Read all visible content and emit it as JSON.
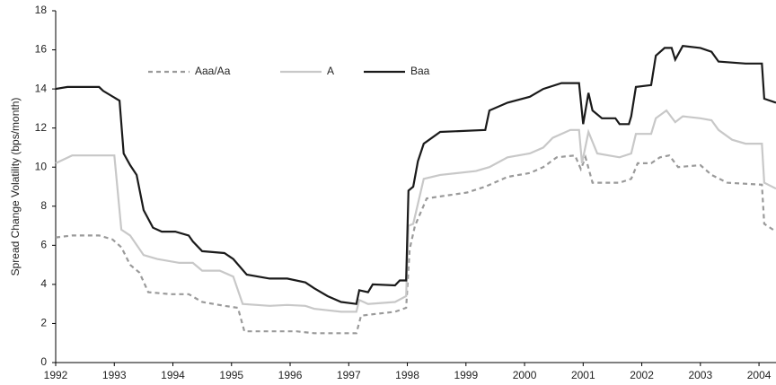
{
  "chart_data": {
    "type": "line",
    "ylabel": "Spread Change Volatility (bps/month)",
    "xlim": [
      1992,
      2004.29
    ],
    "xticks": [
      1992,
      1993,
      1994,
      1995,
      1996,
      1997,
      1998,
      1999,
      2000,
      2001,
      2002,
      2003,
      2004
    ],
    "ylim": [
      0,
      18
    ],
    "yticks": [
      0,
      2,
      4,
      6,
      8,
      10,
      12,
      14,
      16,
      18
    ],
    "grid": false,
    "legend": "top-left",
    "series": [
      {
        "name": "Aaa/Aa",
        "color": "#9a9a9a",
        "dash": true,
        "x": [
          1992.0,
          1992.28,
          1992.74,
          1992.97,
          1993.12,
          1993.27,
          1993.43,
          1993.58,
          1993.96,
          1994.27,
          1994.5,
          1994.88,
          1995.11,
          1995.22,
          1995.65,
          1996.11,
          1996.41,
          1997.13,
          1997.21,
          1997.49,
          1997.79,
          1997.98,
          1998.04,
          1998.13,
          1998.33,
          1998.56,
          1999.02,
          1999.33,
          1999.71,
          2000.09,
          2000.32,
          2000.55,
          2000.86,
          2000.96,
          2001.04,
          2001.16,
          2001.62,
          2001.82,
          2001.93,
          2002.16,
          2002.31,
          2002.47,
          2002.62,
          2003.0,
          2003.19,
          2003.46,
          2004.05,
          2004.09,
          2004.29
        ],
        "values": [
          6.4,
          6.5,
          6.5,
          6.3,
          5.9,
          5.0,
          4.6,
          3.6,
          3.5,
          3.5,
          3.1,
          2.9,
          2.8,
          1.6,
          1.6,
          1.6,
          1.5,
          1.5,
          2.4,
          2.5,
          2.6,
          2.8,
          5.8,
          7.0,
          8.4,
          8.5,
          8.7,
          9.0,
          9.5,
          9.7,
          10.0,
          10.5,
          10.6,
          9.9,
          10.5,
          9.2,
          9.2,
          9.4,
          10.2,
          10.2,
          10.5,
          10.6,
          10.0,
          10.1,
          9.6,
          9.2,
          9.1,
          7.1,
          6.7
        ]
      },
      {
        "name": "A",
        "color": "#c8c8c8",
        "dash": false,
        "x": [
          1992.0,
          1992.28,
          1992.89,
          1993.0,
          1993.12,
          1993.27,
          1993.5,
          1993.73,
          1994.11,
          1994.34,
          1994.5,
          1994.8,
          1995.03,
          1995.19,
          1995.65,
          1995.95,
          1996.26,
          1996.41,
          1996.87,
          1997.13,
          1997.18,
          1997.33,
          1997.79,
          1997.98,
          1998.02,
          1998.1,
          1998.28,
          1998.56,
          1999.17,
          1999.4,
          1999.71,
          2000.09,
          2000.32,
          2000.48,
          2000.78,
          2000.93,
          2000.98,
          2001.09,
          2001.24,
          2001.62,
          2001.82,
          2001.9,
          2002.16,
          2002.24,
          2002.42,
          2002.57,
          2002.7,
          2003.0,
          2003.19,
          2003.31,
          2003.54,
          2003.77,
          2004.05,
          2004.09,
          2004.29
        ],
        "values": [
          10.2,
          10.6,
          10.6,
          10.6,
          6.8,
          6.5,
          5.5,
          5.3,
          5.1,
          5.1,
          4.7,
          4.7,
          4.4,
          3.0,
          2.9,
          2.95,
          2.9,
          2.75,
          2.6,
          2.6,
          3.2,
          3.0,
          3.1,
          3.4,
          7.0,
          7.1,
          9.4,
          9.6,
          9.8,
          10.0,
          10.5,
          10.7,
          11.0,
          11.5,
          11.9,
          11.9,
          10.2,
          11.8,
          10.7,
          10.5,
          10.7,
          11.7,
          11.7,
          12.5,
          12.9,
          12.3,
          12.6,
          12.5,
          12.4,
          11.9,
          11.4,
          11.2,
          11.2,
          9.2,
          8.9
        ]
      },
      {
        "name": "Baa",
        "color": "#1a1a1a",
        "dash": false,
        "x": [
          1992.0,
          1992.2,
          1992.74,
          1992.81,
          1993.09,
          1993.16,
          1993.27,
          1993.38,
          1993.5,
          1993.66,
          1993.81,
          1994.04,
          1994.27,
          1994.34,
          1994.5,
          1994.88,
          1995.03,
          1995.26,
          1995.65,
          1995.95,
          1996.26,
          1996.41,
          1996.64,
          1996.87,
          1997.13,
          1997.18,
          1997.33,
          1997.41,
          1997.79,
          1997.87,
          1997.98,
          1998.02,
          1998.1,
          1998.18,
          1998.28,
          1998.56,
          1999.33,
          1999.4,
          1999.71,
          2000.09,
          2000.32,
          2000.63,
          2000.93,
          2001.0,
          2001.09,
          2001.16,
          2001.32,
          2001.55,
          2001.62,
          2001.78,
          2001.82,
          2001.9,
          2002.16,
          2002.24,
          2002.39,
          2002.51,
          2002.57,
          2002.7,
          2003.0,
          2003.19,
          2003.31,
          2003.77,
          2004.05,
          2004.09,
          2004.29
        ],
        "values": [
          14.0,
          14.1,
          14.1,
          13.9,
          13.4,
          10.7,
          10.1,
          9.6,
          7.8,
          6.9,
          6.7,
          6.7,
          6.5,
          6.2,
          5.7,
          5.6,
          5.3,
          4.5,
          4.3,
          4.3,
          4.1,
          3.8,
          3.4,
          3.1,
          3.0,
          3.7,
          3.6,
          4.0,
          3.95,
          4.2,
          4.2,
          8.8,
          9.0,
          10.3,
          11.2,
          11.8,
          11.9,
          12.9,
          13.3,
          13.6,
          14.0,
          14.3,
          14.3,
          12.2,
          13.8,
          12.9,
          12.5,
          12.5,
          12.2,
          12.2,
          12.6,
          14.1,
          14.2,
          15.7,
          16.1,
          16.1,
          15.5,
          16.2,
          16.1,
          15.9,
          15.4,
          15.3,
          15.3,
          13.5,
          13.3
        ]
      }
    ]
  }
}
